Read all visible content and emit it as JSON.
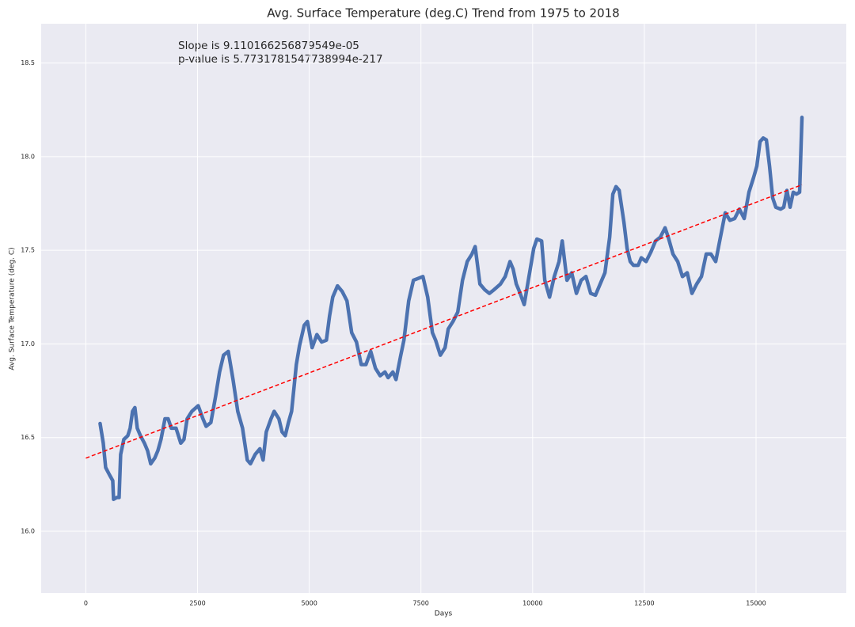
{
  "chart_data": {
    "type": "line",
    "title": "Avg. Surface Temperature (deg.C) Trend from 1975 to 2018",
    "xlabel": "Days",
    "ylabel": "Avg. Surface Temperature (deg. C)",
    "annotations": [
      "Slope is 9.110166256879549e-05",
      "p-value is 5.7731781547738994e-217"
    ],
    "xlim": [
      -1000,
      17020
    ],
    "ylim": [
      15.67,
      18.71
    ],
    "xticks": [
      0,
      2500,
      5000,
      7500,
      10000,
      12500,
      15000
    ],
    "yticks": [
      {
        "value": 16,
        "label": "16.0"
      },
      16.5,
      {
        "value": 17,
        "label": "17.0"
      },
      17.5,
      {
        "value": 18,
        "label": "18.0"
      },
      18.5
    ],
    "grid": true,
    "background": "#eaeaf2",
    "series": [
      {
        "color": "#4c72b0",
        "linestyle": "solid",
        "x": [
          319,
          390,
          443,
          531,
          602,
          620,
          691,
          744,
          779,
          850,
          939,
          992,
          1045,
          1098,
          1151,
          1222,
          1311,
          1381,
          1452,
          1541,
          1612,
          1682,
          1771,
          1842,
          1913,
          2019,
          2125,
          2196,
          2267,
          2373,
          2515,
          2621,
          2692,
          2798,
          2904,
          2993,
          3082,
          3188,
          3294,
          3400,
          3507,
          3613,
          3684,
          3790,
          3896,
          3967,
          4038,
          4144,
          4215,
          4321,
          4392,
          4463,
          4534,
          4605,
          4711,
          4782,
          4888,
          4959,
          5065,
          5171,
          5278,
          5384,
          5455,
          5526,
          5632,
          5738,
          5844,
          5950,
          6057,
          6163,
          6269,
          6376,
          6482,
          6588,
          6694,
          6765,
          6871,
          6942,
          7049,
          7119,
          7226,
          7332,
          7438,
          7544,
          7651,
          7757,
          7828,
          7934,
          8040,
          8111,
          8217,
          8324,
          8430,
          8536,
          8642,
          8713,
          8820,
          8926,
          9032,
          9138,
          9280,
          9386,
          9493,
          9563,
          9634,
          9705,
          9811,
          9918,
          10024,
          10095,
          10201,
          10272,
          10378,
          10484,
          10591,
          10662,
          10768,
          10874,
          10980,
          11086,
          11193,
          11299,
          11405,
          11511,
          11618,
          11724,
          11795,
          11866,
          11937,
          12043,
          12114,
          12184,
          12255,
          12362,
          12432,
          12539,
          12645,
          12751,
          12857,
          12964,
          13035,
          13141,
          13247,
          13353,
          13460,
          13566,
          13672,
          13778,
          13885,
          13991,
          14097,
          14203,
          14310,
          14416,
          14522,
          14628,
          14735,
          14841,
          14947,
          15018,
          15089,
          15160,
          15231,
          15302,
          15372,
          15443,
          15549,
          15620,
          15691,
          15762,
          15833,
          15904,
          15975,
          16028
        ],
        "values": [
          16.575,
          16.47,
          16.34,
          16.3,
          16.27,
          16.17,
          16.18,
          16.18,
          16.41,
          16.49,
          16.51,
          16.55,
          16.64,
          16.66,
          16.55,
          16.51,
          16.47,
          16.43,
          16.36,
          16.39,
          16.43,
          16.49,
          16.6,
          16.6,
          16.55,
          16.55,
          16.47,
          16.49,
          16.6,
          16.64,
          16.67,
          16.6,
          16.56,
          16.58,
          16.72,
          16.85,
          16.94,
          16.96,
          16.81,
          16.64,
          16.55,
          16.38,
          16.36,
          16.41,
          16.44,
          16.38,
          16.53,
          16.6,
          16.64,
          16.6,
          16.53,
          16.51,
          16.58,
          16.64,
          16.89,
          16.99,
          17.1,
          17.12,
          16.98,
          17.05,
          17.01,
          17.02,
          17.15,
          17.25,
          17.31,
          17.28,
          17.23,
          17.06,
          17.01,
          16.89,
          16.89,
          16.96,
          16.87,
          16.83,
          16.85,
          16.82,
          16.85,
          16.81,
          16.94,
          17.02,
          17.23,
          17.34,
          17.35,
          17.36,
          17.25,
          17.06,
          17.02,
          16.94,
          16.98,
          17.08,
          17.12,
          17.17,
          17.34,
          17.44,
          17.48,
          17.52,
          17.32,
          17.29,
          17.27,
          17.29,
          17.32,
          17.36,
          17.44,
          17.4,
          17.32,
          17.28,
          17.21,
          17.36,
          17.51,
          17.56,
          17.55,
          17.34,
          17.25,
          17.36,
          17.44,
          17.55,
          17.34,
          17.38,
          17.27,
          17.34,
          17.36,
          17.27,
          17.26,
          17.32,
          17.38,
          17.57,
          17.8,
          17.84,
          17.82,
          17.65,
          17.51,
          17.44,
          17.42,
          17.42,
          17.46,
          17.44,
          17.49,
          17.55,
          17.57,
          17.62,
          17.57,
          17.48,
          17.44,
          17.36,
          17.38,
          17.27,
          17.32,
          17.36,
          17.48,
          17.48,
          17.44,
          17.57,
          17.7,
          17.66,
          17.67,
          17.72,
          17.67,
          17.81,
          17.89,
          17.95,
          18.08,
          18.1,
          18.09,
          17.95,
          17.78,
          17.73,
          17.72,
          17.73,
          17.82,
          17.73,
          17.81,
          17.8,
          17.81,
          18.21
        ]
      },
      {
        "color": "#ff0000",
        "linestyle": "dashed",
        "x": [
          0,
          16028
        ],
        "values": [
          16.39,
          17.85
        ]
      }
    ]
  }
}
